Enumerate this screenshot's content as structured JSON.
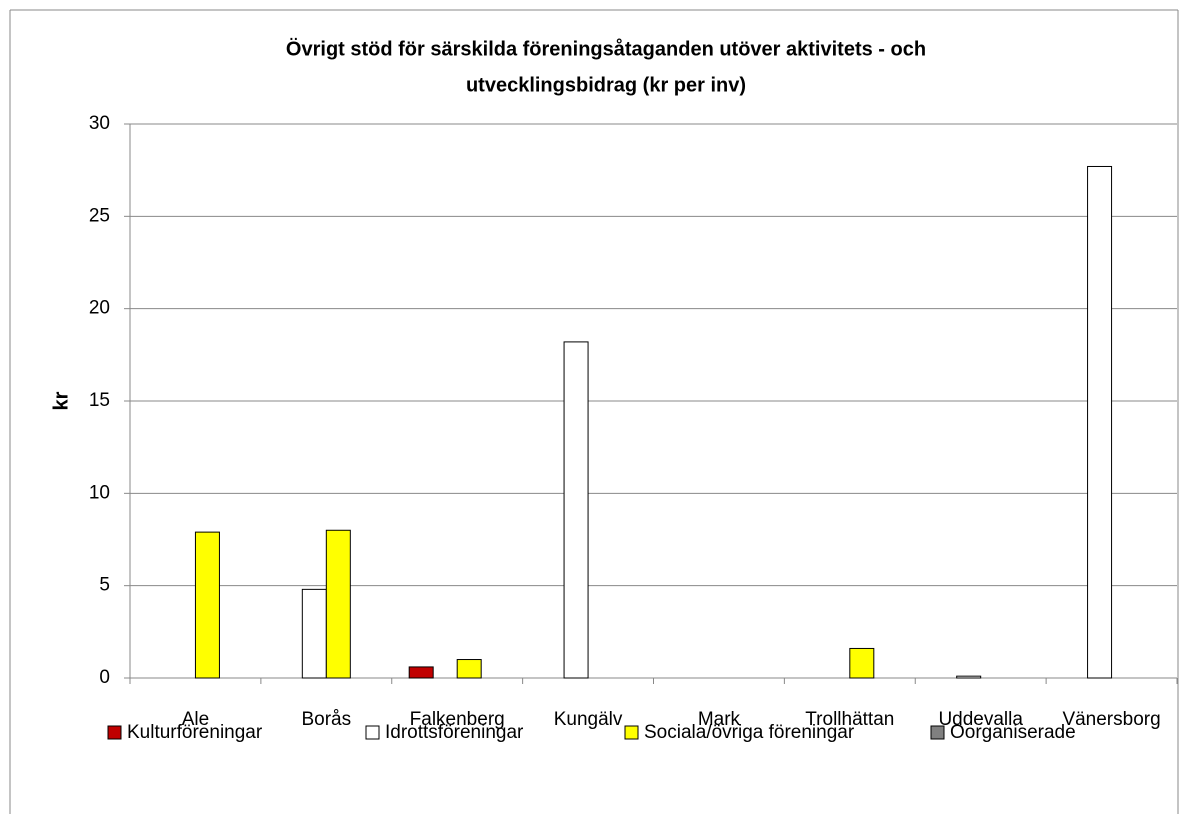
{
  "chart_data": {
    "type": "bar",
    "title": [
      "Övrigt stöd för särskilda föreningsåtaganden utöver aktivitets - och",
      "utvecklingsbidrag (kr per inv)"
    ],
    "y_label": "kr",
    "categories": [
      "Ale",
      "Borås",
      "Falkenberg",
      "Kungälv",
      "Mark",
      "Trollhättan",
      "Uddevalla",
      "Vänersborg"
    ],
    "series": [
      {
        "name": "Kulturföreningar",
        "color": "#c00000",
        "values": [
          0,
          0,
          0.6,
          0,
          0,
          0,
          0,
          0
        ]
      },
      {
        "name": "Idrottsföreningar",
        "color": "#ffffff",
        "values": [
          0,
          4.8,
          0,
          18.2,
          0,
          0,
          0.1,
          27.7
        ]
      },
      {
        "name": "Sociala/övriga föreningar",
        "color": "#ffff00",
        "values": [
          7.9,
          8.0,
          1.0,
          0,
          0,
          1.6,
          0,
          0
        ]
      },
      {
        "name": "Oorganiserade",
        "color": "#808080",
        "values": [
          0,
          0,
          0,
          0,
          0,
          0,
          0,
          0
        ]
      }
    ],
    "ylim": [
      0,
      30
    ],
    "yticks": [
      0,
      5,
      10,
      15,
      20,
      25,
      30
    ],
    "grid": true,
    "legend": "bottom"
  }
}
